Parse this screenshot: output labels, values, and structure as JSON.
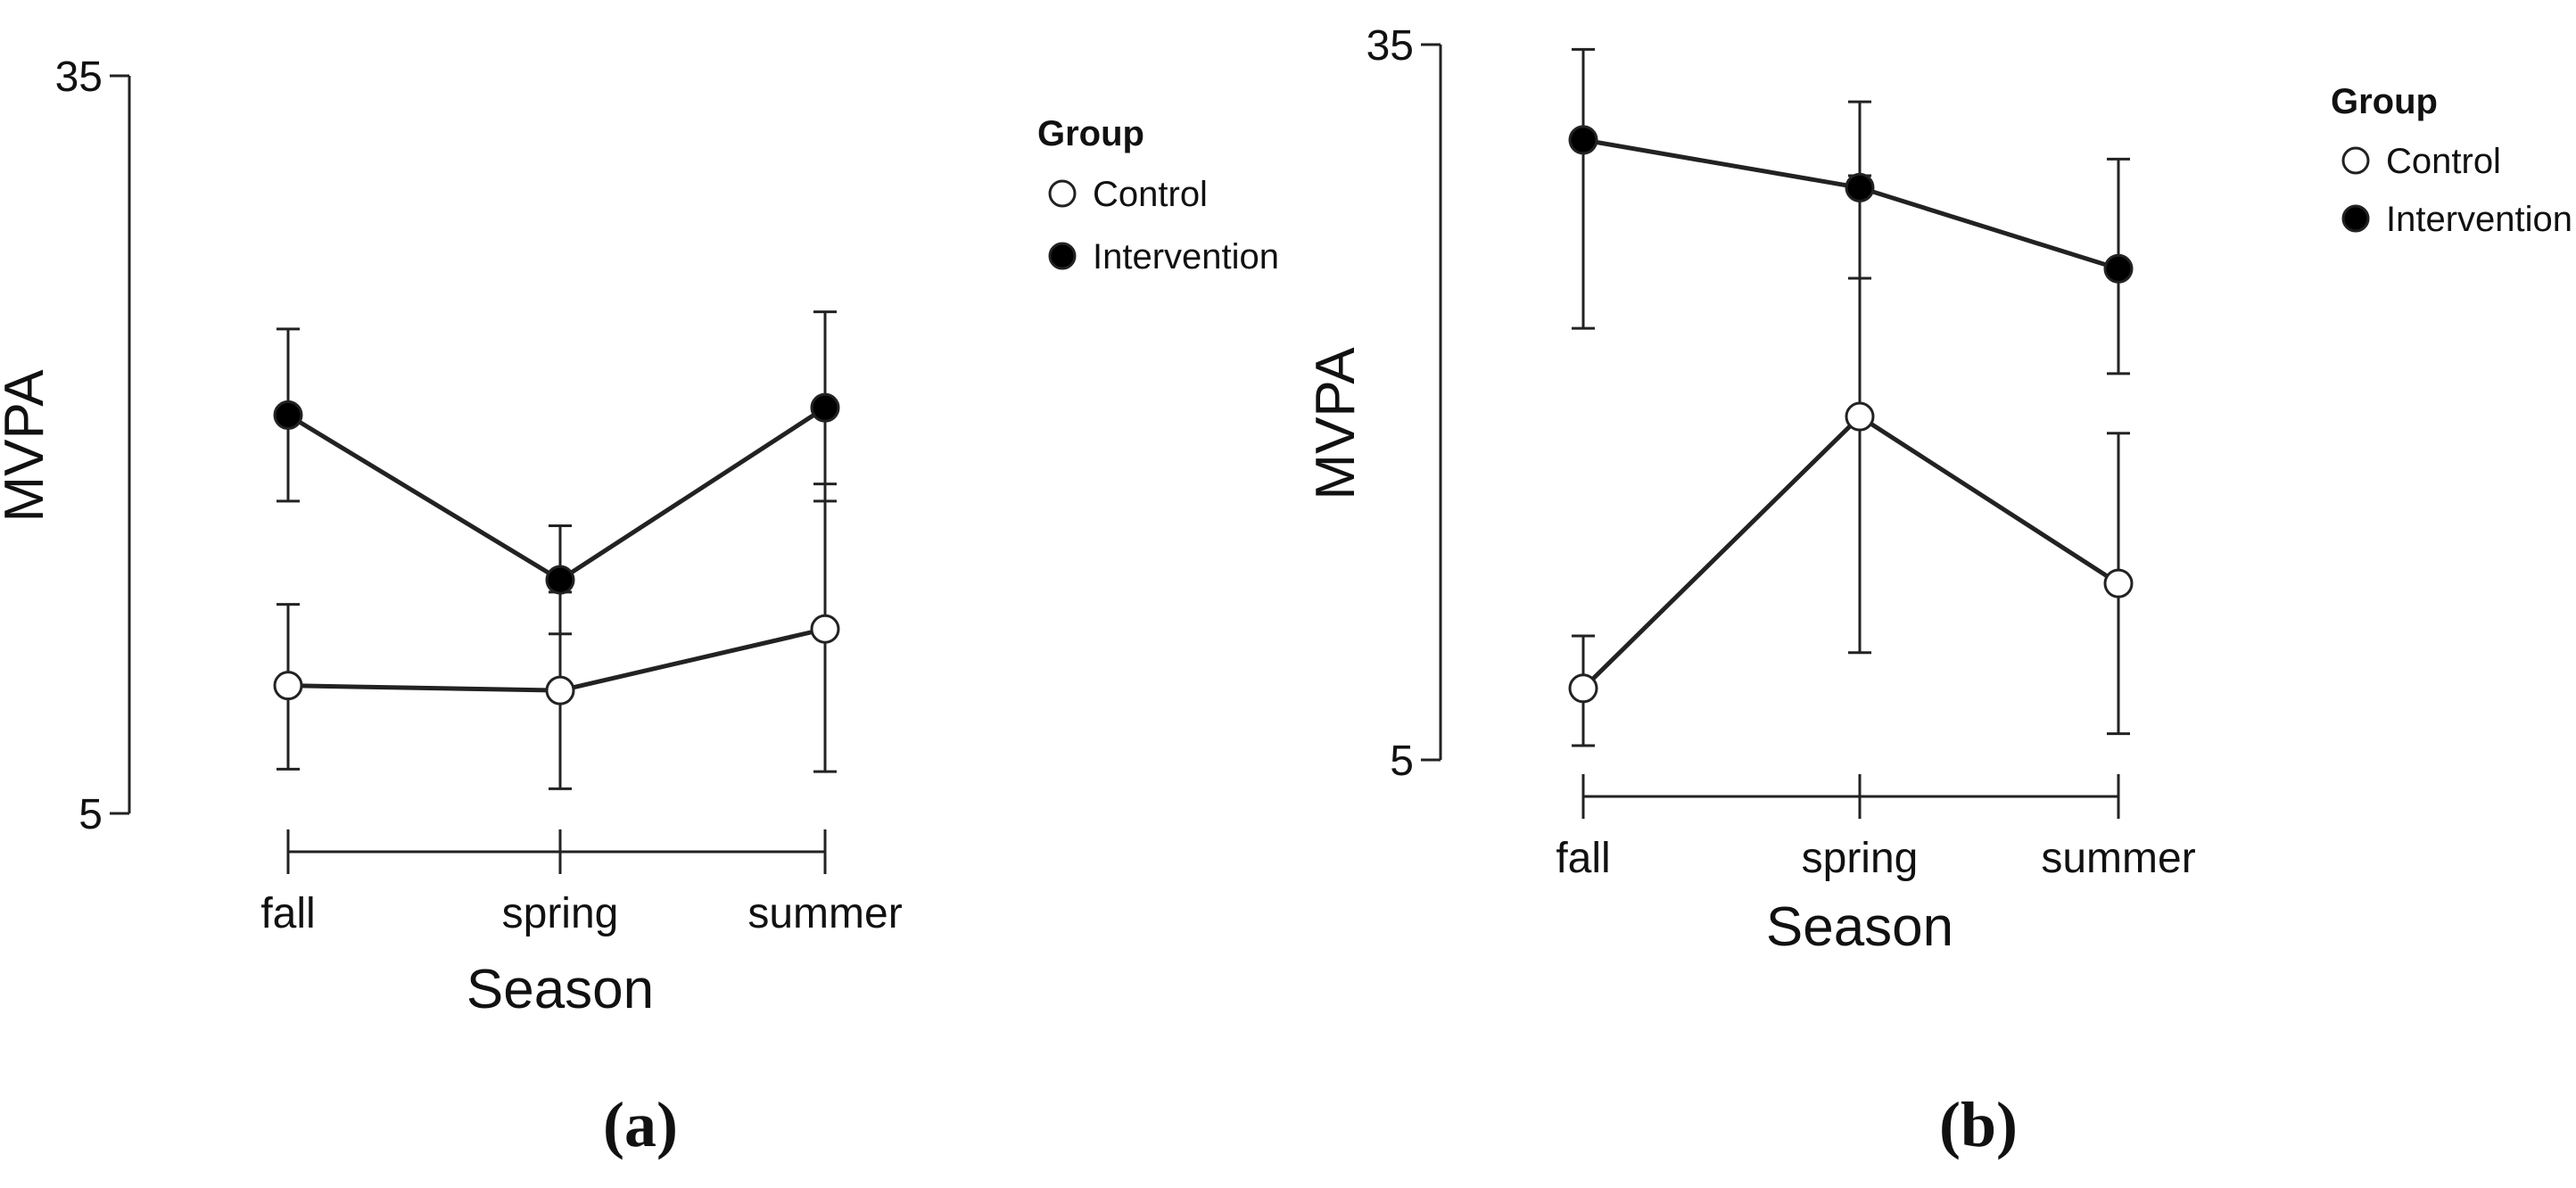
{
  "colors": {
    "control_fill": "#ffffff",
    "intervention_fill": "#000000",
    "stroke": "#222222"
  },
  "chart_data": [
    {
      "type": "line",
      "panel_label": "(a)",
      "xlabel": "Season",
      "ylabel": "MVPA",
      "ylim": [
        5,
        35
      ],
      "y_ticks": [
        "35",
        "5"
      ],
      "categories": [
        "fall",
        "spring",
        "summer"
      ],
      "legend": {
        "title": "Group",
        "entries": [
          "Control",
          "Intervention"
        ],
        "position": "top-right"
      },
      "series": [
        {
          "name": "Control",
          "values": [
            10.2,
            10.0,
            12.5
          ],
          "err_low": [
            6.8,
            6.0,
            6.7
          ],
          "err_high": [
            13.5,
            14.0,
            18.4
          ]
        },
        {
          "name": "Intervention",
          "values": [
            21.2,
            14.5,
            21.5
          ],
          "err_low": [
            17.7,
            12.3,
            17.7
          ],
          "err_high": [
            24.7,
            16.7,
            25.4
          ]
        }
      ]
    },
    {
      "type": "line",
      "panel_label": "(b)",
      "xlabel": "Season",
      "ylabel": "MVPA",
      "ylim": [
        5,
        35
      ],
      "y_ticks": [
        "35",
        "5"
      ],
      "categories": [
        "fall",
        "spring",
        "summer"
      ],
      "legend": {
        "title": "Group",
        "entries": [
          "Control",
          "Intervention"
        ],
        "position": "top-right"
      },
      "series": [
        {
          "name": "Control",
          "values": [
            8.0,
            19.4,
            12.4
          ],
          "err_low": [
            5.6,
            9.5,
            6.1
          ],
          "err_high": [
            10.2,
            29.5,
            18.7
          ]
        },
        {
          "name": "Intervention",
          "values": [
            31.0,
            29.0,
            25.6
          ],
          "err_low": [
            23.1,
            25.2,
            21.2
          ],
          "err_high": [
            34.8,
            32.6,
            30.2
          ]
        }
      ]
    }
  ]
}
